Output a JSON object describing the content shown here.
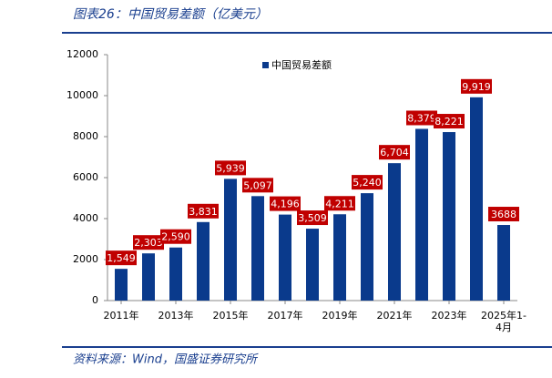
{
  "chart_data": {
    "type": "bar",
    "title": "图表26：中国贸易差额（亿美元）",
    "source": "资料来源：Wind，国盛证券研究所",
    "categories": [
      "2011年",
      null,
      "2013年",
      null,
      "2015年",
      null,
      "2017年",
      null,
      "2019年",
      null,
      "2021年",
      null,
      "2023年",
      null,
      "2025年1-4月"
    ],
    "series": [
      {
        "name": "中国贸易差额",
        "color": "#0a3a8c",
        "values": [
          1549,
          2303,
          2590,
          3831,
          5939,
          5097,
          4196,
          3509,
          4211,
          5240,
          6704,
          8379,
          8221,
          9919,
          3688
        ],
        "value_labels": [
          "1,549",
          "2,303",
          "2,590",
          "3,831",
          "5,939",
          "5,097",
          "4,196",
          "3,509",
          "4,211",
          "5,240",
          "6,704",
          "8,379",
          "8,221",
          "9,919",
          "3688"
        ]
      }
    ],
    "ylim": [
      0,
      12000
    ],
    "yticks": [
      0,
      2000,
      4000,
      6000,
      8000,
      10000,
      12000
    ],
    "grid": false,
    "legend": "top"
  }
}
